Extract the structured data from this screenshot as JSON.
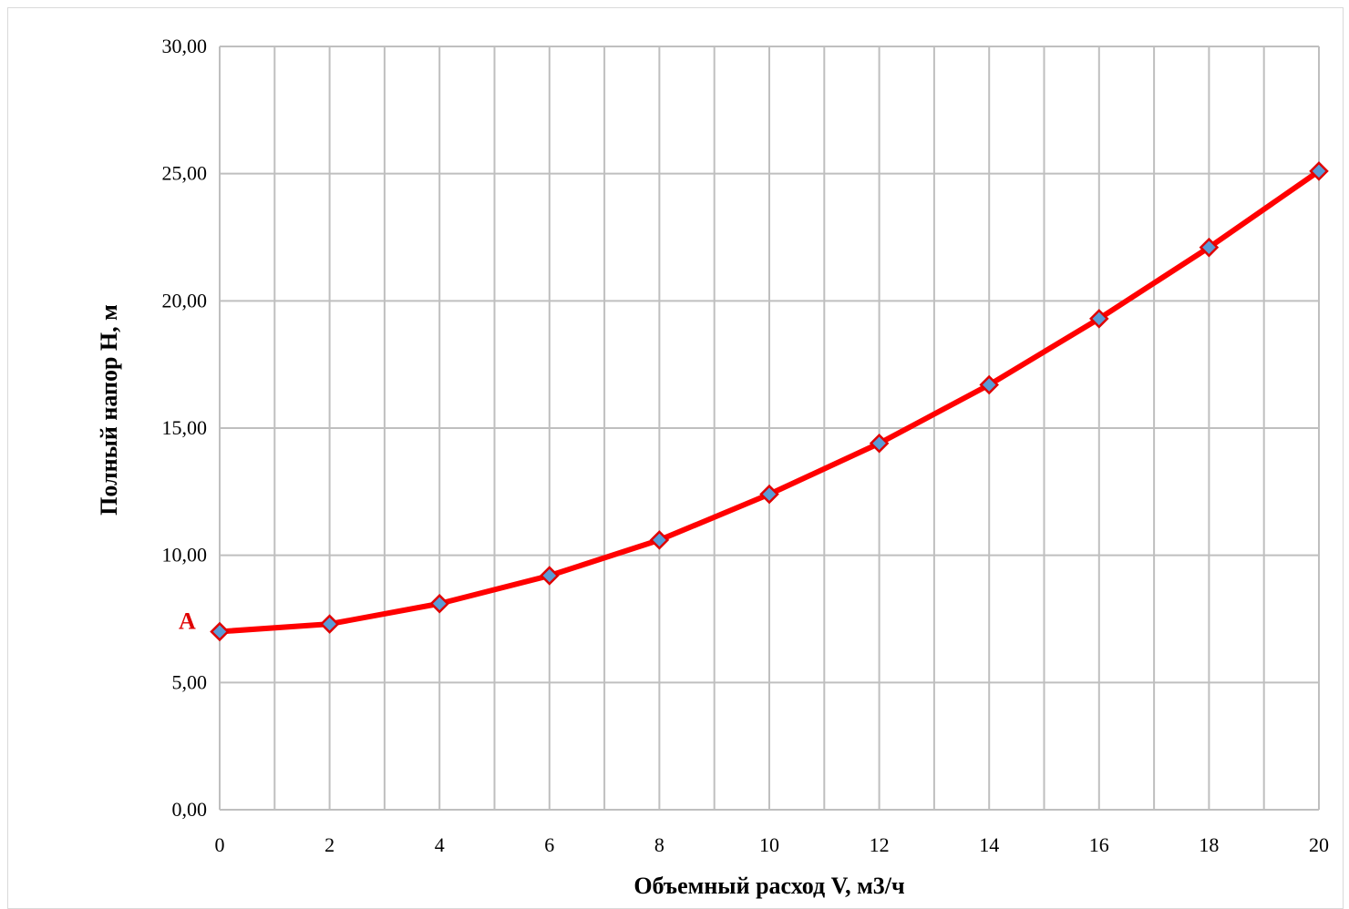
{
  "chart_data": {
    "type": "line",
    "xlabel": "Объемный расход V, м3/ч",
    "ylabel": "Полный напор H, м",
    "x_ticks": [
      "0",
      "2",
      "4",
      "6",
      "8",
      "10",
      "12",
      "14",
      "16",
      "18",
      "20"
    ],
    "y_ticks": [
      "0,00",
      "5,00",
      "10,00",
      "15,00",
      "20,00",
      "25,00",
      "30,00"
    ],
    "xlim": [
      0,
      20
    ],
    "ylim": [
      0,
      30
    ],
    "x_minor_step": 1,
    "grid": true,
    "series": [
      {
        "x": [
          0,
          2,
          4,
          6,
          8,
          10,
          12,
          14,
          16,
          18,
          20
        ],
        "y": [
          7.0,
          7.3,
          8.1,
          9.2,
          10.6,
          12.4,
          14.4,
          16.7,
          19.3,
          22.1,
          25.1
        ],
        "line_color": "#ff0000",
        "marker_fill": "#5b9bd5",
        "marker_stroke": "#e00000"
      }
    ],
    "annotations": [
      {
        "text": "A",
        "x": 0,
        "y": 7.0
      }
    ]
  }
}
